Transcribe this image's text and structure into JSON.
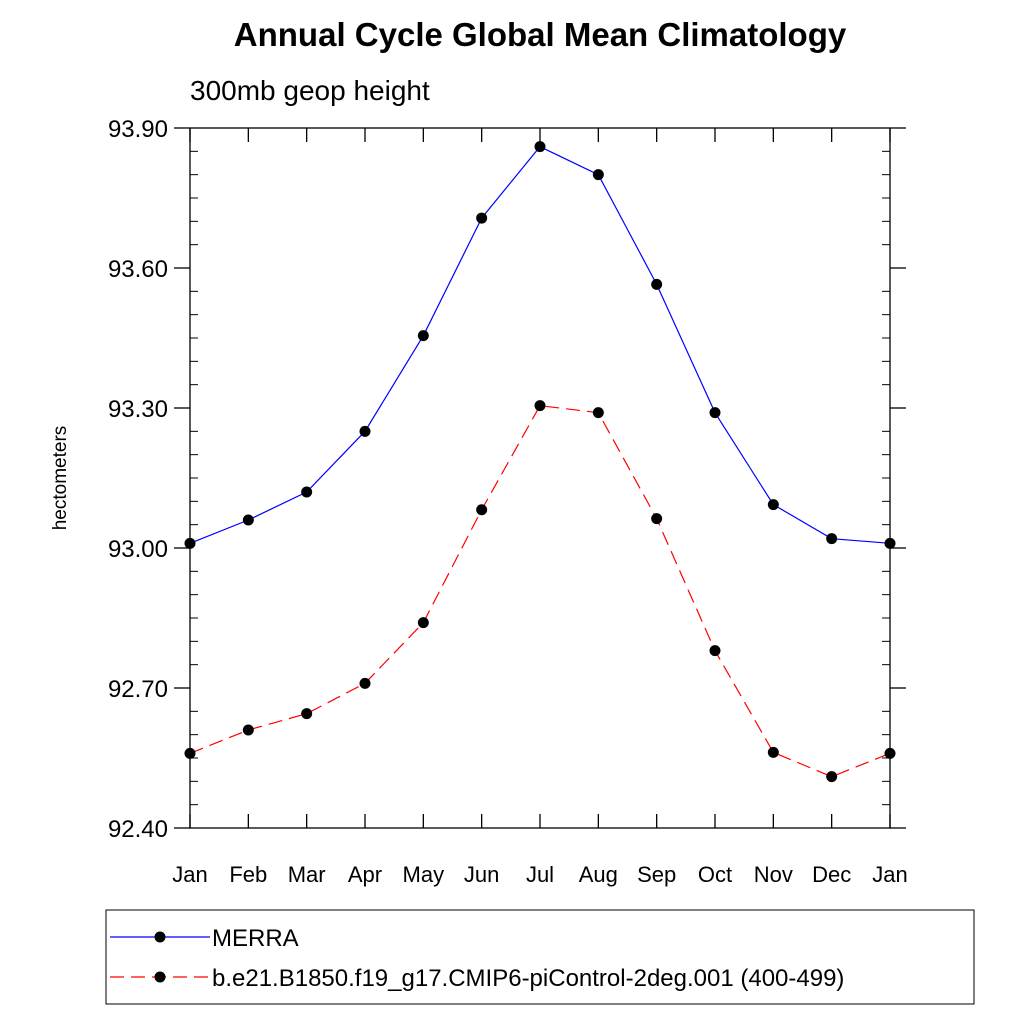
{
  "chart_data": {
    "type": "line",
    "title": "Annual Cycle Global Mean Climatology",
    "subtitle": "300mb geop height",
    "xlabel": "",
    "ylabel": "hectometers",
    "categories": [
      "Jan",
      "Feb",
      "Mar",
      "Apr",
      "May",
      "Jun",
      "Jul",
      "Aug",
      "Sep",
      "Oct",
      "Nov",
      "Dec",
      "Jan"
    ],
    "ylim": [
      92.4,
      93.9
    ],
    "yticks": [
      92.4,
      92.7,
      93.0,
      93.3,
      93.6,
      93.9
    ],
    "ytick_labels": [
      "92.40",
      "92.70",
      "93.00",
      "93.30",
      "93.60",
      "93.90"
    ],
    "grid": false,
    "legend_position": "bottom",
    "series": [
      {
        "name": "MERRA",
        "color": "#0000ff",
        "dash": "solid",
        "marker": "filled-circle",
        "values": [
          93.01,
          93.06,
          93.12,
          93.25,
          93.455,
          93.707,
          93.86,
          93.8,
          93.565,
          93.29,
          93.093,
          93.02,
          93.01
        ]
      },
      {
        "name": "b.e21.B1850.f19_g17.CMIP6-piControl-2deg.001 (400-499)",
        "color": "#ff0000",
        "dash": "dashed",
        "marker": "filled-circle",
        "values": [
          92.56,
          92.61,
          92.645,
          92.71,
          92.84,
          93.082,
          93.305,
          93.29,
          93.063,
          92.78,
          92.562,
          92.51,
          92.56
        ]
      }
    ]
  }
}
